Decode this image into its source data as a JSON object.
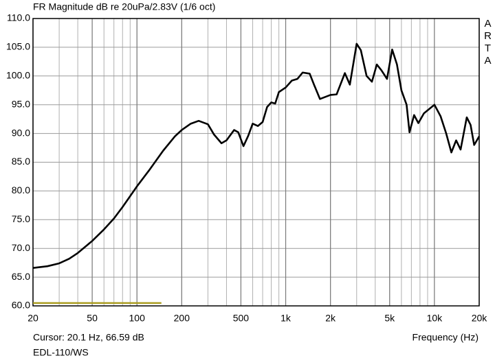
{
  "chart_data": {
    "type": "line",
    "title": "FR Magnitude dB re 20uPa/2.83V (1/6 oct)",
    "side_label": "ARTA",
    "cursor_text": "Cursor: 20.1 Hz, 66.59 dB",
    "x_label": "Frequency (Hz)",
    "footer": "EDL-110/WS",
    "xscale": "log",
    "grid": true,
    "xlim": [
      20,
      20000
    ],
    "ylim": [
      60,
      110
    ],
    "xticks": [
      20,
      50,
      100,
      200,
      500,
      {
        "value": 1000,
        "label": "1k"
      },
      {
        "value": 2000,
        "label": "2k"
      },
      {
        "value": 5000,
        "label": "5k"
      },
      {
        "value": 10000,
        "label": "10k"
      },
      {
        "value": 20000,
        "label": "20k"
      }
    ],
    "yticks": [
      {
        "value": 60,
        "label": "60.0"
      },
      {
        "value": 65,
        "label": "65.0"
      },
      {
        "value": 70,
        "label": "70.0"
      },
      {
        "value": 75,
        "label": "75.0"
      },
      {
        "value": 80,
        "label": "80.0"
      },
      {
        "value": 85,
        "label": "85.0"
      },
      {
        "value": 90,
        "label": "90.0"
      },
      {
        "value": 95,
        "label": "95.0"
      },
      {
        "value": 100,
        "label": "100.0"
      },
      {
        "value": 105,
        "label": "105.0"
      },
      {
        "value": 110,
        "label": "110.0"
      }
    ],
    "series": [
      {
        "color": "#000000",
        "x": [
          20,
          25,
          30,
          35,
          40,
          50,
          60,
          70,
          80,
          100,
          120,
          150,
          180,
          200,
          230,
          260,
          300,
          330,
          370,
          400,
          450,
          480,
          520,
          560,
          600,
          650,
          700,
          750,
          800,
          850,
          900,
          1000,
          1100,
          1200,
          1300,
          1450,
          1550,
          1700,
          2000,
          2200,
          2500,
          2700,
          3000,
          3200,
          3500,
          3800,
          4100,
          4400,
          4800,
          5200,
          5600,
          6000,
          6500,
          6800,
          7300,
          7800,
          8500,
          10000,
          11000,
          12000,
          13000,
          14000,
          15000,
          16500,
          17500,
          18500,
          20000
        ],
        "values": [
          66.6,
          66.9,
          67.4,
          68.2,
          69.2,
          71.3,
          73.3,
          75.2,
          77.2,
          80.8,
          83.5,
          87.0,
          89.5,
          90.6,
          91.7,
          92.2,
          91.6,
          89.8,
          88.3,
          88.8,
          90.6,
          90.2,
          87.8,
          89.6,
          91.7,
          91.3,
          92.0,
          94.6,
          95.4,
          95.2,
          97.2,
          98.0,
          99.2,
          99.5,
          100.6,
          100.4,
          98.5,
          96.0,
          96.7,
          96.8,
          100.5,
          98.5,
          105.6,
          104.5,
          100.0,
          99.0,
          102.0,
          101.0,
          99.5,
          104.6,
          102.0,
          97.5,
          95.0,
          90.2,
          93.2,
          91.8,
          93.5,
          95.0,
          93.0,
          90.0,
          86.7,
          88.8,
          87.2,
          92.8,
          91.5,
          88.0,
          89.5
        ]
      },
      {
        "color": "#a99b1c",
        "x": [
          20,
          146
        ],
        "values": [
          60.5,
          60.5
        ]
      }
    ]
  }
}
